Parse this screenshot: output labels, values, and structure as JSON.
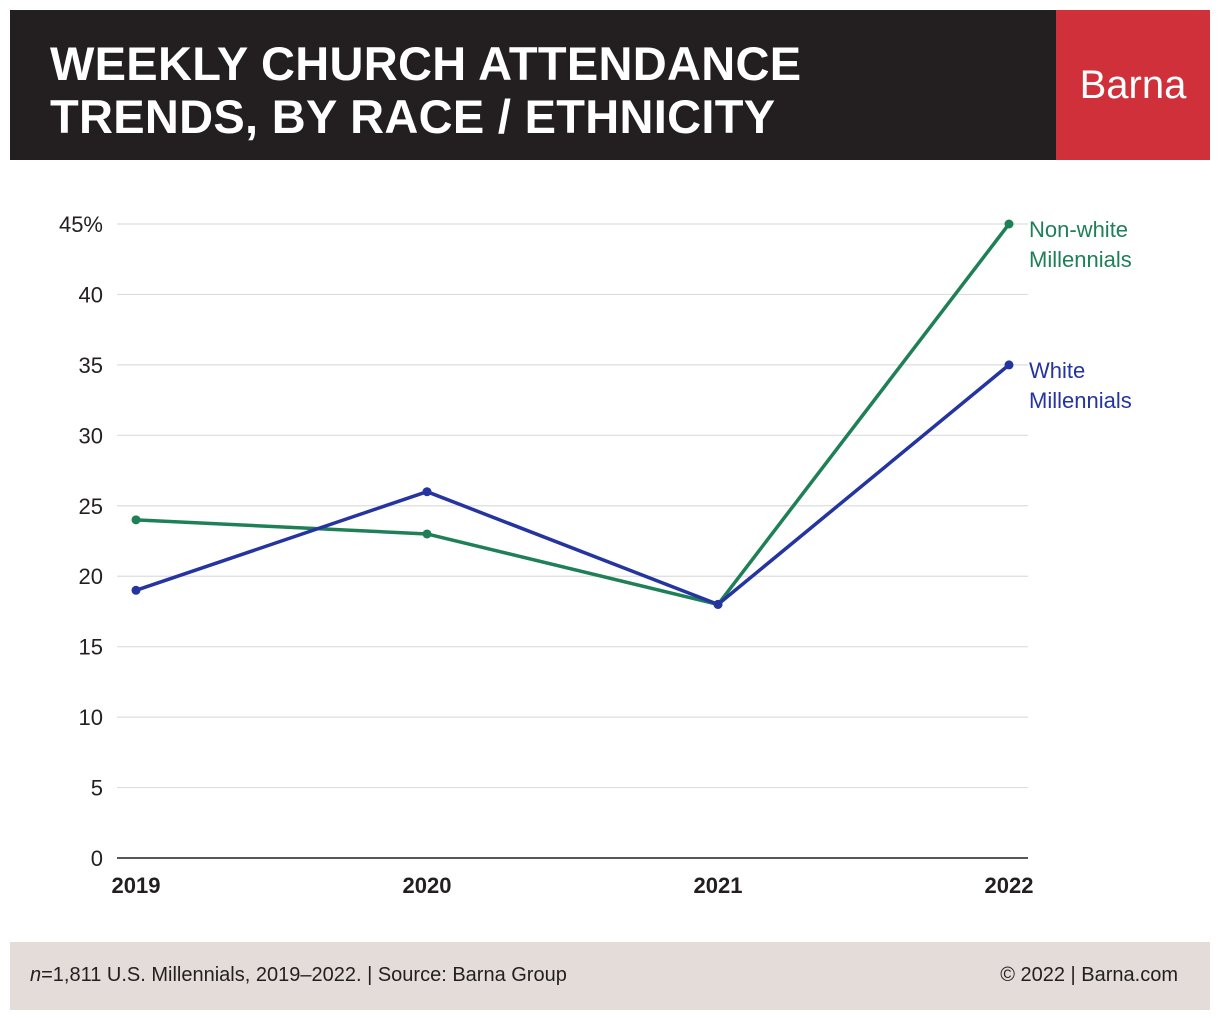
{
  "header": {
    "title": "WEEKLY CHURCH ATTENDANCE\nTRENDS, BY RACE / ETHNICITY",
    "brand": "Barna",
    "background_color": "#231f20",
    "brand_color": "#d0303a"
  },
  "chart_data": {
    "type": "line",
    "title": "WEEKLY CHURCH ATTENDANCE TRENDS, BY RACE / ETHNICITY",
    "x": [
      "2019",
      "2020",
      "2021",
      "2022"
    ],
    "ylim": [
      0,
      45
    ],
    "yticks": [
      0,
      5,
      10,
      15,
      20,
      25,
      30,
      35,
      40,
      45
    ],
    "ytick_labels": [
      "0",
      "5",
      "10",
      "15",
      "20",
      "25",
      "30",
      "35",
      "40",
      "45%"
    ],
    "grid": true,
    "legend": "inline labels at line ends (right)",
    "series": [
      {
        "name": "Non-white Millennials",
        "label_lines": [
          "Non-white",
          "Millennials"
        ],
        "color": "#1f8058",
        "values": [
          24,
          23,
          18,
          45
        ]
      },
      {
        "name": "White Millennials",
        "label_lines": [
          "White",
          "Millennials"
        ],
        "color": "#2434a0",
        "values": [
          19,
          26,
          18,
          35
        ]
      }
    ]
  },
  "footer": {
    "n_label": "n",
    "note": "=1,811 U.S. Millennials, 2019–2022. | Source: Barna Group",
    "copyright": "© 2022 |   Barna.com"
  }
}
